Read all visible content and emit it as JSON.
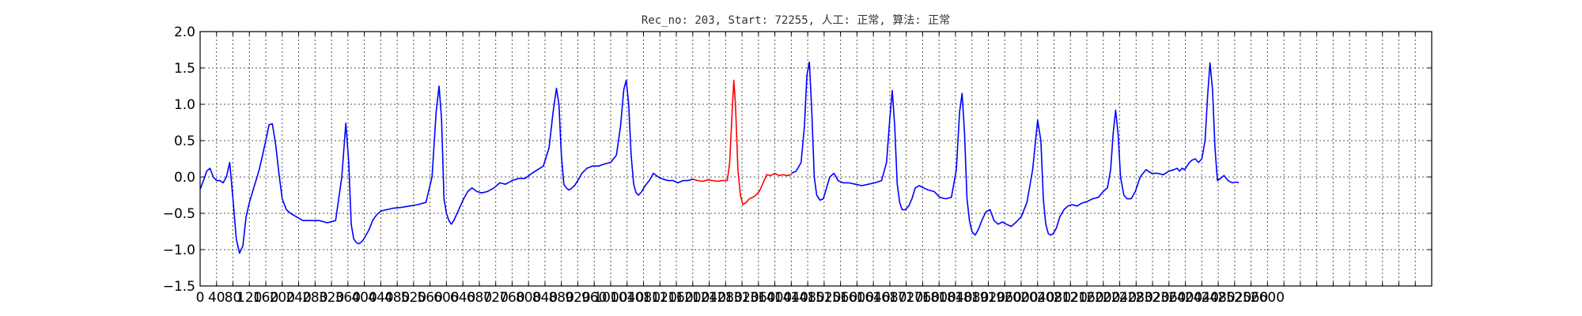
{
  "chart_data": {
    "type": "line",
    "title": "Rec_no: 203, Start: 72255, 人工: 正常, 算法: 正常",
    "xlabel": "",
    "ylabel": "",
    "xlim": [
      0,
      3000
    ],
    "ylim": [
      -1.5,
      2.0
    ],
    "grid": true,
    "yticks": [
      -1.5,
      -1.0,
      -0.5,
      0.0,
      0.5,
      1.0,
      1.5,
      2.0
    ],
    "ytick_labels": [
      "−1.5",
      "−1.0",
      "−0.5",
      "0.0",
      "0.5",
      "1.0",
      "1.5",
      "2.0"
    ],
    "xtick_step": 40,
    "xtick_label_max": 2600,
    "colors": {
      "normal": "#0000ff",
      "highlight": "#ff0000"
    },
    "series": [
      {
        "color": "#0000ff",
        "x": [
          0,
          8,
          16,
          24,
          32,
          40,
          48,
          56,
          64,
          72,
          80,
          88,
          96,
          104,
          112,
          120,
          128,
          136,
          144,
          152,
          160,
          168,
          176,
          184,
          192,
          200,
          210,
          220,
          235,
          250,
          270,
          290,
          310,
          330,
          345,
          355,
          362,
          368,
          374,
          380,
          386,
          392,
          398,
          404,
          412,
          420,
          430,
          440,
          455,
          470,
          490,
          510,
          530,
          550,
          565,
          575,
          582,
          588,
          594,
          600,
          606,
          612,
          618,
          626,
          634,
          642,
          652,
          662,
          674,
          686,
          700,
          716,
          730,
          744,
          760,
          776,
          792,
          808,
          822,
          836,
          850,
          860,
          868,
          874,
          880,
          886,
          892,
          898,
          904,
          912,
          920,
          930,
          942,
          956,
          970,
          986,
          1000,
          1014,
          1024,
          1032,
          1038,
          1044,
          1050,
          1056,
          1062,
          1068,
          1076,
          1084,
          1094,
          1104,
          1116,
          1128,
          1140,
          1152,
          1164,
          1176,
          1188,
          1200
        ],
        "y": [
          -0.17,
          -0.05,
          0.08,
          0.12,
          0.0,
          -0.05,
          -0.05,
          -0.08,
          0.0,
          0.2,
          -0.3,
          -0.85,
          -1.05,
          -0.95,
          -0.55,
          -0.35,
          -0.2,
          -0.05,
          0.1,
          0.3,
          0.5,
          0.72,
          0.73,
          0.45,
          0.05,
          -0.3,
          -0.45,
          -0.5,
          -0.55,
          -0.6,
          -0.6,
          -0.6,
          -0.63,
          -0.6,
          0.0,
          0.74,
          0.2,
          -0.65,
          -0.85,
          -0.9,
          -0.92,
          -0.9,
          -0.86,
          -0.8,
          -0.72,
          -0.6,
          -0.52,
          -0.47,
          -0.45,
          -0.43,
          -0.42,
          -0.4,
          -0.38,
          -0.35,
          0.0,
          0.9,
          1.25,
          0.8,
          -0.3,
          -0.5,
          -0.6,
          -0.65,
          -0.6,
          -0.5,
          -0.4,
          -0.3,
          -0.2,
          -0.15,
          -0.2,
          -0.22,
          -0.2,
          -0.15,
          -0.08,
          -0.1,
          -0.05,
          -0.02,
          -0.02,
          0.05,
          0.1,
          0.15,
          0.4,
          0.9,
          1.22,
          1.0,
          0.3,
          -0.1,
          -0.15,
          -0.18,
          -0.16,
          -0.12,
          -0.05,
          0.05,
          0.12,
          0.15,
          0.15,
          0.18,
          0.2,
          0.3,
          0.7,
          1.2,
          1.33,
          1.0,
          0.3,
          -0.1,
          -0.22,
          -0.25,
          -0.2,
          -0.12,
          -0.05,
          0.05,
          0.0,
          -0.03,
          -0.05,
          -0.05,
          -0.08,
          -0.05,
          -0.05,
          -0.03
        ]
      },
      {
        "color": "#ff0000",
        "x": [
          1200,
          1212,
          1224,
          1236,
          1248,
          1260,
          1272,
          1284,
          1290,
          1296,
          1300,
          1304,
          1310,
          1316,
          1322,
          1330,
          1338,
          1346,
          1354,
          1362,
          1370,
          1380,
          1390,
          1400,
          1410,
          1420,
          1430,
          1440
        ],
        "y": [
          -0.03,
          -0.05,
          -0.06,
          -0.04,
          -0.05,
          -0.06,
          -0.05,
          -0.05,
          0.2,
          0.9,
          1.33,
          1.0,
          0.1,
          -0.25,
          -0.38,
          -0.35,
          -0.3,
          -0.28,
          -0.25,
          -0.2,
          -0.1,
          0.03,
          0.02,
          0.05,
          0.02,
          0.03,
          0.02,
          0.03
        ]
      },
      {
        "color": "#0000ff",
        "x": [
          1440,
          1452,
          1464,
          1472,
          1478,
          1484,
          1490,
          1496,
          1502,
          1510,
          1518,
          1526,
          1534,
          1544,
          1554,
          1566,
          1580,
          1596,
          1612,
          1628,
          1644,
          1660,
          1672,
          1680,
          1686,
          1692,
          1698,
          1704,
          1710,
          1718,
          1726,
          1734,
          1742,
          1752,
          1762,
          1774,
          1788,
          1802,
          1816,
          1830,
          1842,
          1850,
          1856,
          1862,
          1868,
          1874,
          1880,
          1888,
          1896,
          1904,
          1914,
          1924,
          1934,
          1944,
          1954,
          1964,
          1976,
          1988,
          2000,
          2014,
          2028,
          2040,
          2048,
          2054,
          2060,
          2066,
          2072,
          2078,
          2086,
          2094,
          2104,
          2114,
          2124,
          2136,
          2148,
          2160,
          2174,
          2188,
          2200,
          2210,
          2218,
          2224,
          2230,
          2236,
          2242,
          2250,
          2258,
          2268,
          2278,
          2290,
          2304,
          2318,
          2332,
          2346,
          2360,
          2372,
          2380,
          2386,
          2392,
          2398,
          2404,
          2410,
          2416,
          2424,
          2432,
          2440
        ],
        "y": [
          0.05,
          0.08,
          0.2,
          0.7,
          1.4,
          1.58,
          0.9,
          0.0,
          -0.25,
          -0.32,
          -0.3,
          -0.15,
          0.0,
          0.05,
          -0.05,
          -0.08,
          -0.08,
          -0.1,
          -0.12,
          -0.1,
          -0.08,
          -0.05,
          0.2,
          0.8,
          1.19,
          0.7,
          -0.1,
          -0.35,
          -0.45,
          -0.45,
          -0.4,
          -0.3,
          -0.15,
          -0.12,
          -0.15,
          -0.18,
          -0.2,
          -0.28,
          -0.3,
          -0.28,
          0.1,
          0.9,
          1.15,
          0.6,
          -0.3,
          -0.6,
          -0.75,
          -0.8,
          -0.72,
          -0.6,
          -0.48,
          -0.45,
          -0.6,
          -0.65,
          -0.62,
          -0.65,
          -0.68,
          -0.62,
          -0.55,
          -0.35,
          0.1,
          0.78,
          0.5,
          -0.3,
          -0.65,
          -0.78,
          -0.8,
          -0.78,
          -0.7,
          -0.55,
          -0.45,
          -0.4,
          -0.38,
          -0.4,
          -0.36,
          -0.34,
          -0.3,
          -0.28,
          -0.2,
          -0.15,
          0.1,
          0.6,
          0.92,
          0.6,
          0.0,
          -0.25,
          -0.3,
          -0.3,
          -0.2,
          0.0,
          0.1,
          0.05,
          0.05,
          0.03,
          0.08,
          0.1,
          0.12,
          0.08,
          0.12,
          0.1,
          0.15,
          0.2,
          0.23,
          0.25,
          0.2,
          0.25
        ]
      },
      {
        "color": "#0000ff",
        "x": [
          2440,
          2448,
          2454,
          2460,
          2466,
          2472,
          2478,
          2486,
          2494,
          2504,
          2514,
          2524,
          2530
        ],
        "y": [
          0.25,
          0.5,
          1.1,
          1.57,
          1.2,
          0.4,
          -0.05,
          -0.02,
          0.02,
          -0.05,
          -0.08,
          -0.07,
          -0.08
        ]
      }
    ]
  }
}
